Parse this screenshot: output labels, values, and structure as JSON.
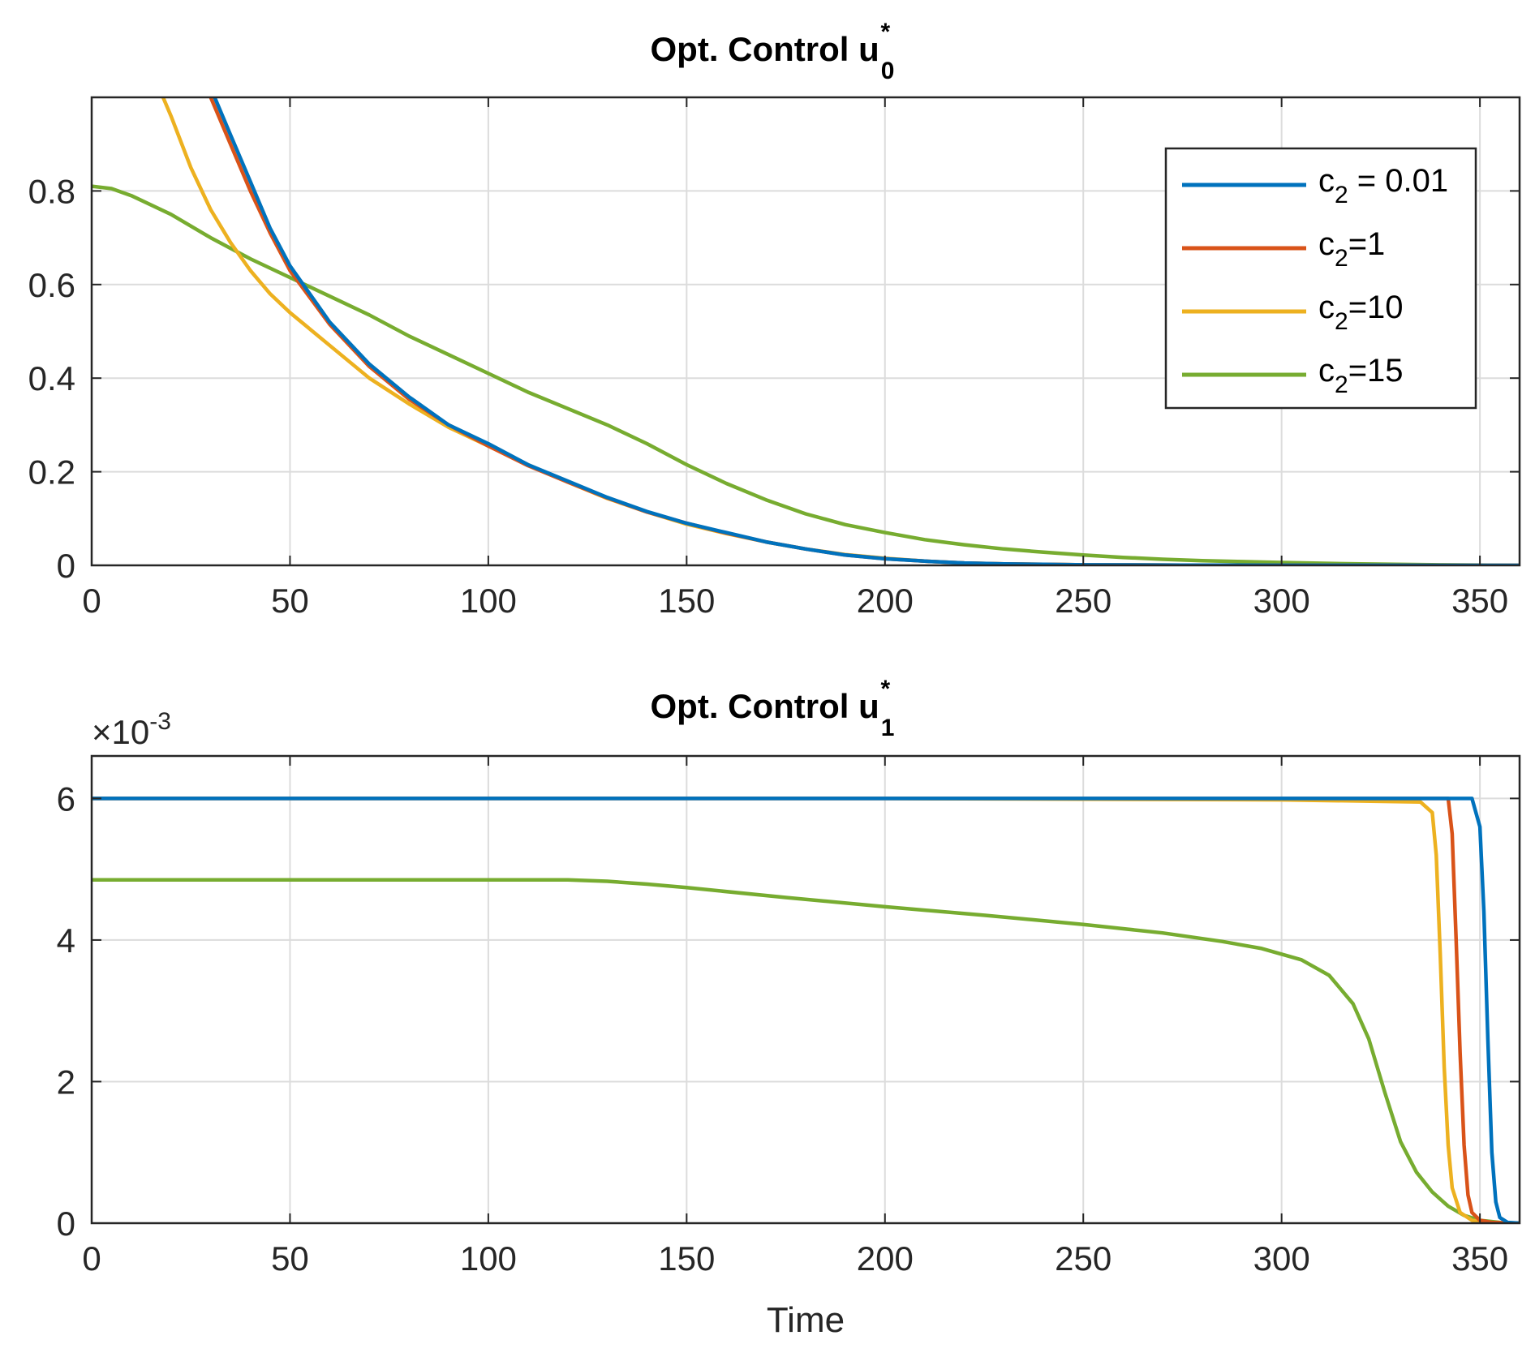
{
  "chart_data": [
    {
      "type": "line",
      "title": "Opt. Control u",
      "title_sub": "0",
      "title_sup": "*",
      "xlabel": "",
      "ylabel": "",
      "xlim": [
        0,
        360
      ],
      "ylim": [
        0,
        1.0
      ],
      "xticks": [
        0,
        50,
        100,
        150,
        200,
        250,
        300,
        350
      ],
      "yticks": [
        0,
        0.2,
        0.4,
        0.6,
        0.8
      ],
      "xtick_labels": [
        "0",
        "50",
        "100",
        "150",
        "200",
        "250",
        "300",
        "350"
      ],
      "ytick_labels": [
        "0",
        "0.2",
        "0.4",
        "0.6",
        "0.8"
      ],
      "grid": true,
      "legend_position": "top-right",
      "series": [
        {
          "name": "c2 = 0.01",
          "color": "#0072BD",
          "x": [
            31,
            35,
            40,
            45,
            50,
            60,
            70,
            80,
            90,
            100,
            110,
            120,
            130,
            140,
            150,
            160,
            170,
            180,
            190,
            200,
            210,
            220,
            230,
            240,
            250,
            275,
            300,
            325,
            350,
            360
          ],
          "y": [
            1.0,
            0.92,
            0.82,
            0.72,
            0.64,
            0.52,
            0.43,
            0.36,
            0.3,
            0.26,
            0.215,
            0.18,
            0.145,
            0.115,
            0.09,
            0.07,
            0.05,
            0.035,
            0.022,
            0.014,
            0.009,
            0.005,
            0.003,
            0.002,
            0.001,
            0.0005,
            0.0002,
            0.0001,
            0.0,
            0.0
          ]
        },
        {
          "name": "c2=1",
          "color": "#D95319",
          "x": [
            30,
            35,
            40,
            45,
            50,
            60,
            70,
            80,
            90,
            100,
            110,
            120,
            130,
            140,
            150,
            160,
            170,
            180,
            190,
            200,
            210,
            220,
            230,
            240,
            250,
            275,
            300,
            325,
            350,
            360
          ],
          "y": [
            1.0,
            0.9,
            0.8,
            0.71,
            0.63,
            0.515,
            0.425,
            0.355,
            0.3,
            0.255,
            0.213,
            0.178,
            0.144,
            0.114,
            0.09,
            0.069,
            0.05,
            0.035,
            0.022,
            0.014,
            0.009,
            0.005,
            0.003,
            0.002,
            0.001,
            0.0005,
            0.0002,
            0.0001,
            0.0,
            0.0
          ]
        },
        {
          "name": "c2=10",
          "color": "#EDB120",
          "x": [
            18,
            20,
            25,
            30,
            35,
            40,
            45,
            50,
            60,
            70,
            80,
            90,
            100,
            110,
            120,
            130,
            140,
            150,
            160,
            170,
            180,
            190,
            200,
            210,
            220,
            230,
            240,
            250,
            275,
            300,
            325,
            350,
            360
          ],
          "y": [
            1.0,
            0.96,
            0.85,
            0.76,
            0.69,
            0.63,
            0.58,
            0.54,
            0.47,
            0.4,
            0.345,
            0.295,
            0.255,
            0.215,
            0.178,
            0.143,
            0.114,
            0.088,
            0.068,
            0.05,
            0.035,
            0.023,
            0.015,
            0.009,
            0.005,
            0.003,
            0.002,
            0.001,
            0.0005,
            0.0002,
            0.0001,
            0.0,
            0.0
          ]
        },
        {
          "name": "c2=15",
          "color": "#77AC30",
          "x": [
            0,
            5,
            10,
            20,
            30,
            40,
            50,
            60,
            70,
            80,
            90,
            100,
            110,
            120,
            130,
            140,
            150,
            160,
            170,
            180,
            190,
            200,
            210,
            220,
            230,
            240,
            250,
            260,
            270,
            280,
            290,
            300,
            320,
            340,
            360
          ],
          "y": [
            0.81,
            0.805,
            0.79,
            0.75,
            0.7,
            0.655,
            0.615,
            0.575,
            0.535,
            0.49,
            0.45,
            0.41,
            0.37,
            0.335,
            0.3,
            0.26,
            0.215,
            0.175,
            0.14,
            0.11,
            0.087,
            0.07,
            0.055,
            0.044,
            0.035,
            0.028,
            0.022,
            0.017,
            0.013,
            0.01,
            0.008,
            0.006,
            0.003,
            0.001,
            0.0
          ]
        }
      ]
    },
    {
      "type": "line",
      "title": "Opt. Control u",
      "title_sub": "1",
      "title_sup": "*",
      "xlabel": "Time",
      "ylabel": "",
      "exponent_base": "×10",
      "exponent_power": "-3",
      "xlim": [
        0,
        360
      ],
      "ylim": [
        0,
        6.6
      ],
      "xticks": [
        0,
        50,
        100,
        150,
        200,
        250,
        300,
        350
      ],
      "yticks": [
        0,
        2,
        4,
        6
      ],
      "xtick_labels": [
        "0",
        "50",
        "100",
        "150",
        "200",
        "250",
        "300",
        "350"
      ],
      "ytick_labels": [
        "0",
        "2",
        "4",
        "6"
      ],
      "grid": true,
      "series": [
        {
          "name": "c2 = 0.01",
          "color": "#0072BD",
          "x": [
            0,
            100,
            200,
            300,
            348,
            350,
            351,
            352,
            353,
            354,
            355,
            357,
            360
          ],
          "y": [
            6.0,
            6.0,
            6.0,
            6.0,
            6.0,
            5.6,
            4.4,
            2.6,
            1.0,
            0.3,
            0.08,
            0.01,
            0.0
          ]
        },
        {
          "name": "c2=1",
          "color": "#D95319",
          "x": [
            0,
            100,
            200,
            300,
            342,
            343,
            344,
            345,
            346,
            347,
            348,
            350,
            353,
            360
          ],
          "y": [
            6.0,
            6.0,
            6.0,
            6.0,
            6.0,
            5.5,
            4.0,
            2.4,
            1.1,
            0.4,
            0.15,
            0.04,
            0.01,
            0.0
          ]
        },
        {
          "name": "c2=10",
          "color": "#EDB120",
          "x": [
            0,
            100,
            200,
            300,
            335,
            338,
            339,
            340,
            341,
            342,
            343,
            345,
            348,
            352,
            360
          ],
          "y": [
            6.0,
            6.0,
            6.0,
            5.98,
            5.95,
            5.8,
            5.2,
            3.8,
            2.2,
            1.1,
            0.5,
            0.15,
            0.04,
            0.01,
            0.0
          ]
        },
        {
          "name": "c2=15",
          "color": "#77AC30",
          "x": [
            0,
            50,
            100,
            120,
            130,
            140,
            150,
            175,
            200,
            225,
            250,
            270,
            285,
            295,
            305,
            312,
            318,
            322,
            326,
            330,
            334,
            338,
            342,
            346,
            350,
            355,
            360
          ],
          "y": [
            4.85,
            4.85,
            4.85,
            4.85,
            4.83,
            4.79,
            4.74,
            4.6,
            4.47,
            4.35,
            4.22,
            4.1,
            3.98,
            3.88,
            3.72,
            3.5,
            3.1,
            2.6,
            1.85,
            1.15,
            0.72,
            0.44,
            0.24,
            0.11,
            0.04,
            0.01,
            0.0
          ]
        }
      ]
    }
  ]
}
